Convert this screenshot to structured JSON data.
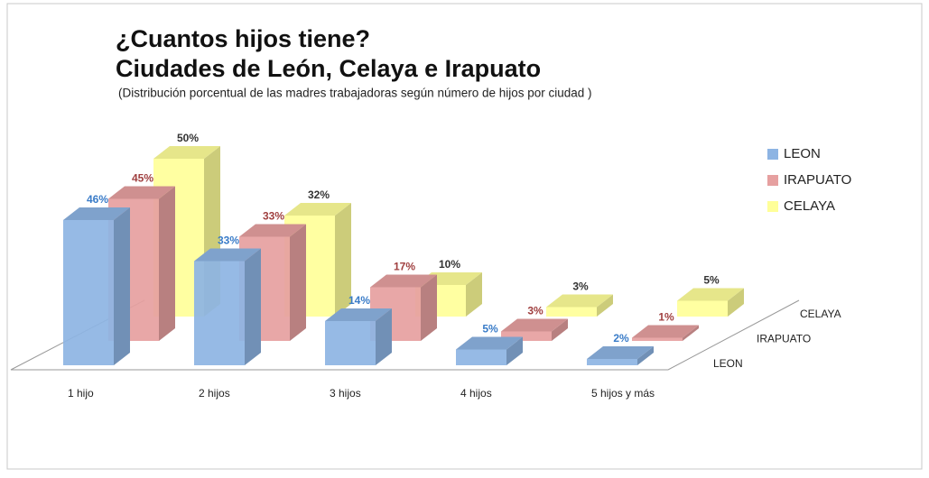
{
  "chart_data": {
    "type": "bar3d",
    "title": [
      "¿Cuantos hijos tiene?",
      "Ciudades de León, Celaya e Irapuato"
    ],
    "subtitle": "(Distribución porcentual de las madres trabajadoras  según número de hijos por ciudad )",
    "categories": [
      "1 hijo",
      "2 hijos",
      "3 hijos",
      "4 hijos",
      "5 hijos y más"
    ],
    "series": [
      {
        "name": "LEON",
        "color": "#8db4e3",
        "label_color": "#3a7cc8",
        "values": [
          46,
          33,
          14,
          5,
          2
        ],
        "value_labels": [
          "46%",
          "33%",
          "14%",
          "5%",
          "2%"
        ]
      },
      {
        "name": "IRAPUATO",
        "color": "#e6a0a0",
        "label_color": "#a04040",
        "values": [
          45,
          33,
          17,
          3,
          1
        ],
        "value_labels": [
          "45%",
          "33%",
          "17%",
          "3%",
          "1%"
        ]
      },
      {
        "name": "CELAYA",
        "color": "#ffff99",
        "label_color": "#333333",
        "values": [
          50,
          32,
          10,
          3,
          5
        ],
        "value_labels": [
          "50%",
          "32%",
          "10%",
          "3%",
          "5%"
        ]
      }
    ]
  }
}
